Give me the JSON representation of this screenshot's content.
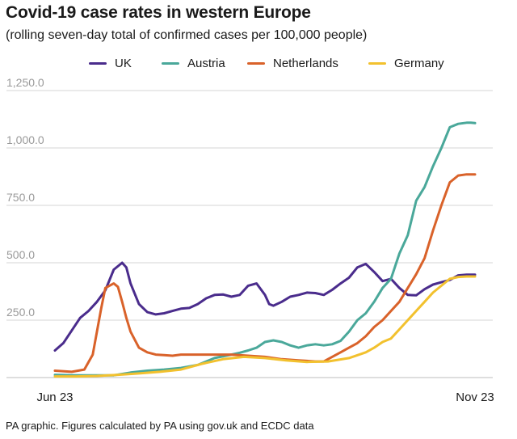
{
  "chart_data": {
    "type": "line",
    "title": "Covid-19 case rates in western Europe",
    "subtitle": "(rolling seven-day total of confirmed cases per 100,000 people)",
    "xlabel": "",
    "ylabel": "",
    "ylim": [
      0,
      1250
    ],
    "yticks": [
      250,
      500,
      750,
      1000,
      1250
    ],
    "ytick_labels": [
      "250.0",
      "500.0",
      "750.0",
      "1,000.0",
      "1,250.0"
    ],
    "x_range": [
      0,
      100
    ],
    "x_tick_labels": [
      {
        "label": "Jun 23",
        "x": 0
      },
      {
        "label": "Nov 23",
        "x": 100
      }
    ],
    "grid": true,
    "legend_position": "top",
    "series": [
      {
        "name": "UK",
        "color": "#4a2c8c",
        "x": [
          0,
          2,
          4,
          6,
          8,
          10,
          12,
          14,
          16,
          17,
          18,
          20,
          22,
          24,
          26,
          28,
          30,
          32,
          34,
          36,
          38,
          40,
          42,
          44,
          46,
          48,
          50,
          51,
          52,
          54,
          56,
          58,
          60,
          62,
          64,
          66,
          68,
          70,
          72,
          74,
          76,
          78,
          80,
          82,
          84,
          86,
          88,
          90,
          92,
          94,
          96,
          98,
          100
        ],
        "y": [
          118,
          150,
          205,
          260,
          290,
          330,
          380,
          470,
          500,
          480,
          410,
          320,
          285,
          275,
          280,
          290,
          300,
          303,
          320,
          345,
          360,
          362,
          352,
          360,
          400,
          410,
          360,
          320,
          313,
          330,
          352,
          360,
          370,
          368,
          360,
          382,
          410,
          435,
          480,
          495,
          460,
          420,
          430,
          390,
          360,
          358,
          385,
          405,
          415,
          425,
          445,
          448,
          448
        ]
      },
      {
        "name": "Austria",
        "color": "#4aa89a",
        "x": [
          0,
          5,
          10,
          14,
          18,
          22,
          26,
          30,
          34,
          38,
          42,
          44,
          46,
          48,
          50,
          52,
          54,
          56,
          58,
          60,
          62,
          64,
          66,
          68,
          70,
          72,
          74,
          76,
          78,
          80,
          82,
          84,
          86,
          88,
          90,
          92,
          94,
          96,
          98,
          99,
          100
        ],
        "y": [
          12,
          10,
          10,
          10,
          22,
          30,
          35,
          42,
          55,
          85,
          100,
          108,
          118,
          130,
          155,
          162,
          155,
          140,
          130,
          140,
          145,
          140,
          145,
          160,
          200,
          250,
          280,
          330,
          390,
          430,
          540,
          620,
          770,
          830,
          920,
          1000,
          1090,
          1105,
          1110,
          1110,
          1108
        ]
      },
      {
        "name": "Netherlands",
        "color": "#d9622a",
        "x": [
          0,
          4,
          7,
          9,
          10,
          11,
          12,
          14,
          15,
          16,
          17,
          18,
          20,
          22,
          24,
          26,
          28,
          30,
          34,
          38,
          42,
          46,
          50,
          54,
          58,
          62,
          64,
          66,
          68,
          70,
          72,
          74,
          76,
          78,
          80,
          82,
          84,
          86,
          88,
          90,
          92,
          94,
          96,
          98,
          100
        ],
        "y": [
          30,
          25,
          35,
          100,
          200,
          300,
          390,
          410,
          395,
          330,
          260,
          200,
          130,
          110,
          100,
          98,
          95,
          100,
          100,
          100,
          100,
          95,
          90,
          80,
          75,
          70,
          70,
          90,
          110,
          130,
          150,
          180,
          220,
          250,
          290,
          330,
          390,
          450,
          520,
          640,
          750,
          850,
          880,
          885,
          885
        ]
      },
      {
        "name": "Germany",
        "color": "#f2c12e",
        "x": [
          0,
          5,
          10,
          15,
          20,
          25,
          30,
          35,
          40,
          45,
          50,
          55,
          60,
          65,
          70,
          74,
          76,
          78,
          80,
          82,
          84,
          86,
          88,
          90,
          92,
          94,
          96,
          98,
          100
        ],
        "y": [
          5,
          5,
          7,
          12,
          18,
          25,
          35,
          60,
          80,
          90,
          85,
          75,
          68,
          70,
          85,
          110,
          130,
          155,
          170,
          210,
          250,
          290,
          330,
          370,
          400,
          430,
          438,
          440,
          440
        ]
      }
    ]
  },
  "footer": "PA graphic. Figures calculated by PA using gov.uk and ECDC data"
}
